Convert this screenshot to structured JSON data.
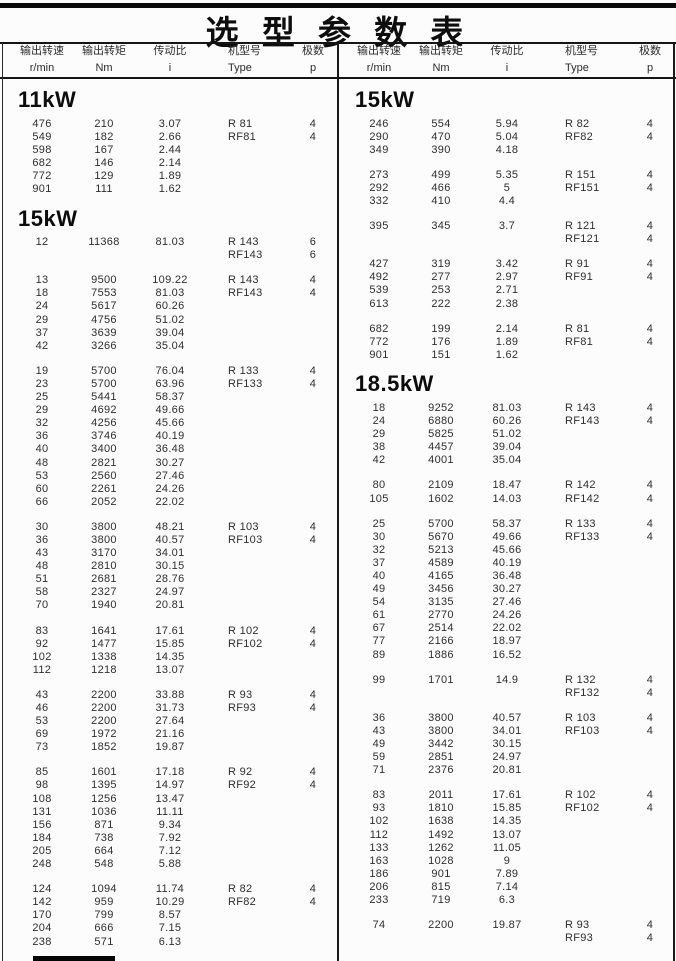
{
  "page": {
    "title": "选 型 参 数 表",
    "columns": [
      {
        "name": "输出转速",
        "unit": "r/min"
      },
      {
        "name": "输出转矩",
        "unit": "Nm"
      },
      {
        "name": "传动比",
        "unit": "i"
      },
      {
        "name": "机型号",
        "unit": "Type"
      },
      {
        "name": "极数",
        "unit": "p"
      }
    ]
  },
  "colors": {
    "ink": "#1e1e1e",
    "paper": "#fcfcfc",
    "rule": "#151515"
  },
  "left_column": {
    "sections": [
      {
        "heading": "11kW",
        "groups": [
          {
            "rows": [
              [
                "476",
                "210",
                "3.07"
              ],
              [
                "549",
                "182",
                "2.66"
              ],
              [
                "598",
                "167",
                "2.44"
              ],
              [
                "682",
                "146",
                "2.14"
              ],
              [
                "772",
                "129",
                "1.89"
              ],
              [
                "901",
                "111",
                "1.62"
              ]
            ],
            "types": [
              "R 81",
              "RF81"
            ],
            "poles": [
              "4",
              "4"
            ]
          }
        ]
      },
      {
        "heading": "15kW",
        "groups": [
          {
            "rows": [
              [
                "12",
                "11368",
                "81.03"
              ]
            ],
            "types": [
              "R 143",
              "RF143"
            ],
            "poles": [
              "6",
              "6"
            ]
          },
          {
            "rows": [
              [
                "13",
                "9500",
                "109.22"
              ],
              [
                "18",
                "7553",
                "81.03"
              ],
              [
                "24",
                "5617",
                "60.26"
              ],
              [
                "29",
                "4756",
                "51.02"
              ],
              [
                "37",
                "3639",
                "39.04"
              ],
              [
                "42",
                "3266",
                "35.04"
              ]
            ],
            "types": [
              "R 143",
              "RF143"
            ],
            "poles": [
              "4",
              "4"
            ]
          },
          {
            "rows": [
              [
                "19",
                "5700",
                "76.04"
              ],
              [
                "23",
                "5700",
                "63.96"
              ],
              [
                "25",
                "5441",
                "58.37"
              ],
              [
                "29",
                "4692",
                "49.66"
              ],
              [
                "32",
                "4256",
                "45.66"
              ],
              [
                "36",
                "3746",
                "40.19"
              ],
              [
                "40",
                "3400",
                "36.48"
              ],
              [
                "48",
                "2821",
                "30.27"
              ],
              [
                "53",
                "2560",
                "27.46"
              ],
              [
                "60",
                "2261",
                "24.26"
              ],
              [
                "66",
                "2052",
                "22.02"
              ]
            ],
            "types": [
              "R 133",
              "RF133"
            ],
            "poles": [
              "4",
              "4"
            ]
          },
          {
            "rows": [
              [
                "30",
                "3800",
                "48.21"
              ],
              [
                "36",
                "3800",
                "40.57"
              ],
              [
                "43",
                "3170",
                "34.01"
              ],
              [
                "48",
                "2810",
                "30.15"
              ],
              [
                "51",
                "2681",
                "28.76"
              ],
              [
                "58",
                "2327",
                "24.97"
              ],
              [
                "70",
                "1940",
                "20.81"
              ]
            ],
            "types": [
              "R 103",
              "RF103"
            ],
            "poles": [
              "4",
              "4"
            ]
          },
          {
            "rows": [
              [
                "83",
                "1641",
                "17.61"
              ],
              [
                "92",
                "1477",
                "15.85"
              ],
              [
                "102",
                "1338",
                "14.35"
              ],
              [
                "112",
                "1218",
                "13.07"
              ]
            ],
            "types": [
              "R 102",
              "RF102"
            ],
            "poles": [
              "4",
              "4"
            ]
          },
          {
            "rows": [
              [
                "43",
                "2200",
                "33.88"
              ],
              [
                "46",
                "2200",
                "31.73"
              ],
              [
                "53",
                "2200",
                "27.64"
              ],
              [
                "69",
                "1972",
                "21.16"
              ],
              [
                "73",
                "1852",
                "19.87"
              ]
            ],
            "types": [
              "R 93",
              "RF93"
            ],
            "poles": [
              "4",
              "4"
            ]
          },
          {
            "rows": [
              [
                "85",
                "1601",
                "17.18"
              ],
              [
                "98",
                "1395",
                "14.97"
              ],
              [
                "108",
                "1256",
                "13.47"
              ],
              [
                "131",
                "1036",
                "11.11"
              ],
              [
                "156",
                "871",
                "9.34"
              ],
              [
                "184",
                "738",
                "7.92"
              ],
              [
                "205",
                "664",
                "7.12"
              ],
              [
                "248",
                "548",
                "5.88"
              ]
            ],
            "types": [
              "R 92",
              "RF92"
            ],
            "poles": [
              "4",
              "4"
            ]
          },
          {
            "rows": [
              [
                "124",
                "1094",
                "11.74"
              ],
              [
                "142",
                "959",
                "10.29"
              ],
              [
                "170",
                "799",
                "8.57"
              ],
              [
                "204",
                "666",
                "7.15"
              ],
              [
                "238",
                "571",
                "6.13"
              ]
            ],
            "types": [
              "R 82",
              "RF82"
            ],
            "poles": [
              "4",
              "4"
            ]
          }
        ]
      }
    ]
  },
  "right_column": {
    "sections": [
      {
        "heading": "15kW",
        "groups": [
          {
            "rows": [
              [
                "246",
                "554",
                "5.94"
              ],
              [
                "290",
                "470",
                "5.04"
              ],
              [
                "349",
                "390",
                "4.18"
              ]
            ],
            "types": [
              "R 82",
              "RF82"
            ],
            "poles": [
              "4",
              "4"
            ]
          },
          {
            "rows": [
              [
                "273",
                "499",
                "5.35"
              ],
              [
                "292",
                "466",
                "5"
              ],
              [
                "332",
                "410",
                "4.4"
              ]
            ],
            "types": [
              "R 151",
              "RF151"
            ],
            "poles": [
              "4",
              "4"
            ]
          },
          {
            "rows": [
              [
                "395",
                "345",
                "3.7"
              ]
            ],
            "types": [
              "R 121",
              "RF121"
            ],
            "poles": [
              "4",
              "4"
            ]
          },
          {
            "rows": [
              [
                "427",
                "319",
                "3.42"
              ],
              [
                "492",
                "277",
                "2.97"
              ],
              [
                "539",
                "253",
                "2.71"
              ],
              [
                "613",
                "222",
                "2.38"
              ]
            ],
            "types": [
              "R 91",
              "RF91"
            ],
            "poles": [
              "4",
              "4"
            ]
          },
          {
            "rows": [
              [
                "682",
                "199",
                "2.14"
              ],
              [
                "772",
                "176",
                "1.89"
              ],
              [
                "901",
                "151",
                "1.62"
              ]
            ],
            "types": [
              "R 81",
              "RF81"
            ],
            "poles": [
              "4",
              "4"
            ]
          }
        ]
      },
      {
        "heading": "18.5kW",
        "groups": [
          {
            "rows": [
              [
                "18",
                "9252",
                "81.03"
              ],
              [
                "24",
                "6880",
                "60.26"
              ],
              [
                "29",
                "5825",
                "51.02"
              ],
              [
                "38",
                "4457",
                "39.04"
              ],
              [
                "42",
                "4001",
                "35.04"
              ]
            ],
            "types": [
              "R 143",
              "RF143"
            ],
            "poles": [
              "4",
              "4"
            ]
          },
          {
            "rows": [
              [
                "80",
                "2109",
                "18.47"
              ],
              [
                "105",
                "1602",
                "14.03"
              ]
            ],
            "types": [
              "R 142",
              "RF142"
            ],
            "poles": [
              "4",
              "4"
            ]
          },
          {
            "rows": [
              [
                "25",
                "5700",
                "58.37"
              ],
              [
                "30",
                "5670",
                "49.66"
              ],
              [
                "32",
                "5213",
                "45.66"
              ],
              [
                "37",
                "4589",
                "40.19"
              ],
              [
                "40",
                "4165",
                "36.48"
              ],
              [
                "49",
                "3456",
                "30.27"
              ],
              [
                "54",
                "3135",
                "27.46"
              ],
              [
                "61",
                "2770",
                "24.26"
              ],
              [
                "67",
                "2514",
                "22.02"
              ],
              [
                "77",
                "2166",
                "18.97"
              ],
              [
                "89",
                "1886",
                "16.52"
              ]
            ],
            "types": [
              "R 133",
              "RF133"
            ],
            "poles": [
              "4",
              "4"
            ]
          },
          {
            "rows": [
              [
                "99",
                "1701",
                "14.9"
              ]
            ],
            "types": [
              "R 132",
              "RF132"
            ],
            "poles": [
              "4",
              "4"
            ]
          },
          {
            "rows": [
              [
                "36",
                "3800",
                "40.57"
              ],
              [
                "43",
                "3800",
                "34.01"
              ],
              [
                "49",
                "3442",
                "30.15"
              ],
              [
                "59",
                "2851",
                "24.97"
              ],
              [
                "71",
                "2376",
                "20.81"
              ]
            ],
            "types": [
              "R 103",
              "RF103"
            ],
            "poles": [
              "4",
              "4"
            ]
          },
          {
            "rows": [
              [
                "83",
                "2011",
                "17.61"
              ],
              [
                "93",
                "1810",
                "15.85"
              ],
              [
                "102",
                "1638",
                "14.35"
              ],
              [
                "112",
                "1492",
                "13.07"
              ],
              [
                "133",
                "1262",
                "11.05"
              ],
              [
                "163",
                "1028",
                "9"
              ],
              [
                "186",
                "901",
                "7.89"
              ],
              [
                "206",
                "815",
                "7.14"
              ],
              [
                "233",
                "719",
                "6.3"
              ]
            ],
            "types": [
              "R 102",
              "RF102"
            ],
            "poles": [
              "4",
              "4"
            ]
          },
          {
            "rows": [
              [
                "74",
                "2200",
                "19.87"
              ]
            ],
            "types": [
              "R 93",
              "RF93"
            ],
            "poles": [
              "4",
              "4"
            ]
          }
        ]
      }
    ]
  }
}
